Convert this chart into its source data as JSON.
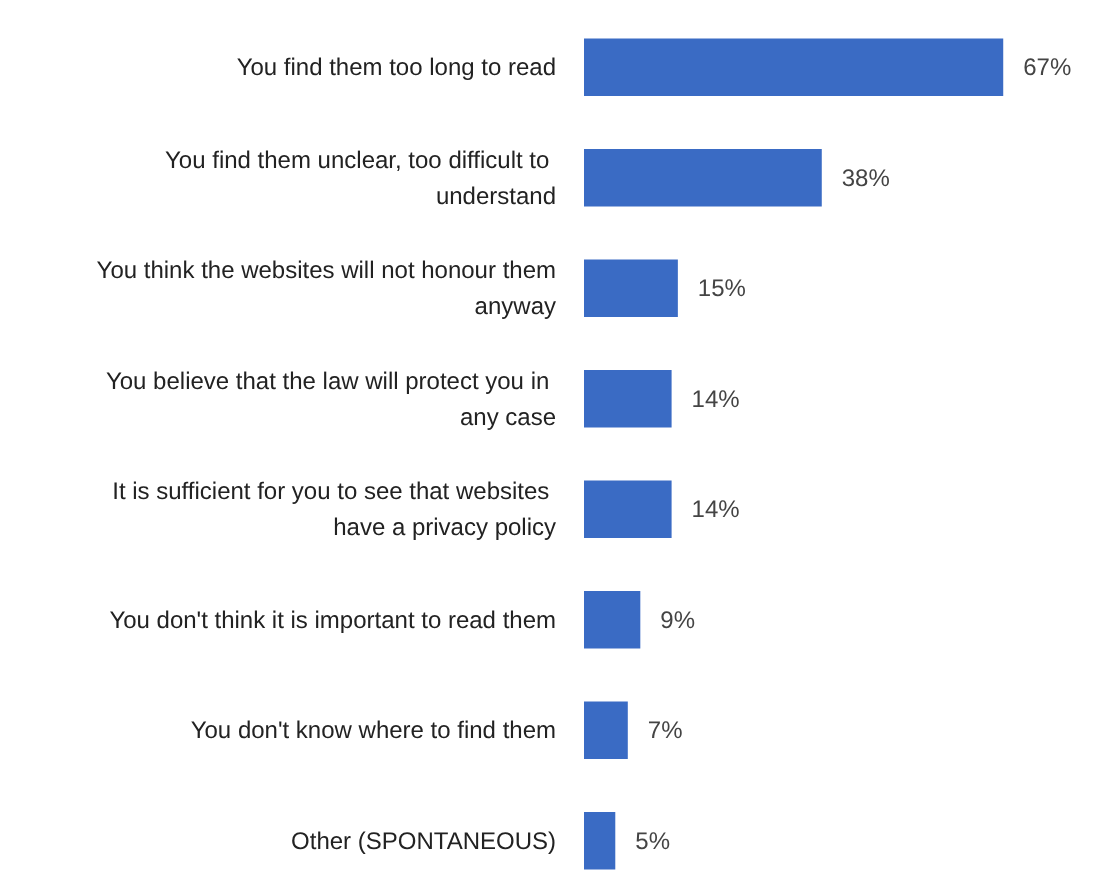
{
  "chart_data": {
    "type": "bar",
    "orientation": "horizontal",
    "categories": [
      "You find them too long to read",
      "You find them unclear, too difficult to understand",
      "You think the websites will not honour them anyway",
      "You believe that the law will protect you in any case",
      "It is sufficient for you to see that websites have a privacy policy",
      "You don't think it is important to read them",
      "You don't know where to find them",
      "Other (SPONTANEOUS)"
    ],
    "values": [
      67,
      38,
      15,
      14,
      14,
      9,
      7,
      5
    ],
    "value_labels": [
      "67%",
      "38%",
      "15%",
      "14%",
      "14%",
      "9%",
      "7%",
      "5%"
    ],
    "color": "#3a6bc4",
    "grid": false
  }
}
